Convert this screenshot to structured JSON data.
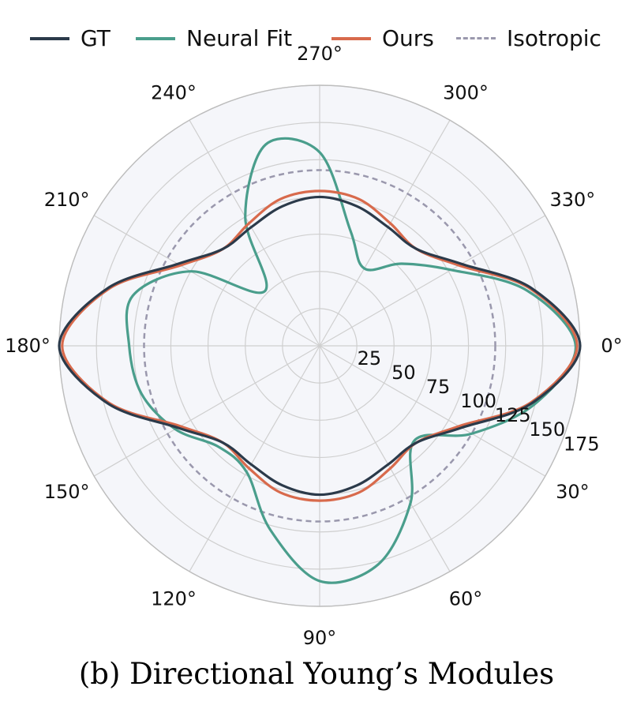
{
  "chart_data": {
    "type": "polar-line",
    "angle_unit": "degrees",
    "angle_direction": "clockwise",
    "angle_zero_location": "right",
    "theta_tick_labels": [
      "0°",
      "30°",
      "60°",
      "90°",
      "120°",
      "150°",
      "180°",
      "210°",
      "240°",
      "270°",
      "300°",
      "330°"
    ],
    "theta_ticks": [
      0,
      30,
      60,
      90,
      120,
      150,
      180,
      210,
      240,
      270,
      300,
      330
    ],
    "r_ticks": [
      25,
      50,
      75,
      100,
      125,
      150,
      175
    ],
    "r_tick_labels": [
      "25",
      "50",
      "75",
      "100",
      "125",
      "150",
      "175"
    ],
    "r_range": [
      0,
      175
    ],
    "grid": true,
    "legend": "top",
    "theta": [
      0,
      15,
      30,
      45,
      60,
      75,
      90,
      105,
      120,
      135,
      150,
      165,
      180,
      195,
      210,
      225,
      240,
      255,
      270,
      285,
      300,
      315,
      330,
      345,
      360
    ],
    "series": [
      {
        "name": "GT",
        "color": "#2b3a4a",
        "style": "solid",
        "values": [
          175,
          148,
          110,
          92,
          92,
          97,
          100,
          97,
          92,
          92,
          110,
          148,
          175,
          148,
          110,
          92,
          92,
          97,
          100,
          97,
          92,
          92,
          110,
          148,
          175
        ]
      },
      {
        "name": "Neural Fit",
        "color": "#4a9e8c",
        "style": "solid",
        "values": [
          172,
          150,
          118,
          90,
          122,
          152,
          158,
          128,
          98,
          96,
          112,
          124,
          128,
          130,
          100,
          52,
          100,
          140,
          130,
          80,
          60,
          78,
          102,
          144,
          172
        ]
      },
      {
        "name": "Ours",
        "color": "#d86a4c",
        "style": "solid",
        "values": [
          173,
          147,
          108,
          92,
          95,
          102,
          104,
          102,
          95,
          92,
          108,
          147,
          173,
          147,
          108,
          92,
          95,
          102,
          104,
          102,
          95,
          92,
          108,
          147,
          173
        ]
      },
      {
        "name": "Isotropic",
        "color": "#9a98ad",
        "style": "dashed",
        "values": [
          118,
          118,
          118,
          118,
          118,
          118,
          118,
          118,
          118,
          118,
          118,
          118,
          118,
          118,
          118,
          118,
          118,
          118,
          118,
          118,
          118,
          118,
          118,
          118,
          118
        ]
      }
    ]
  },
  "caption": "(b) Directional Young’s Modules"
}
